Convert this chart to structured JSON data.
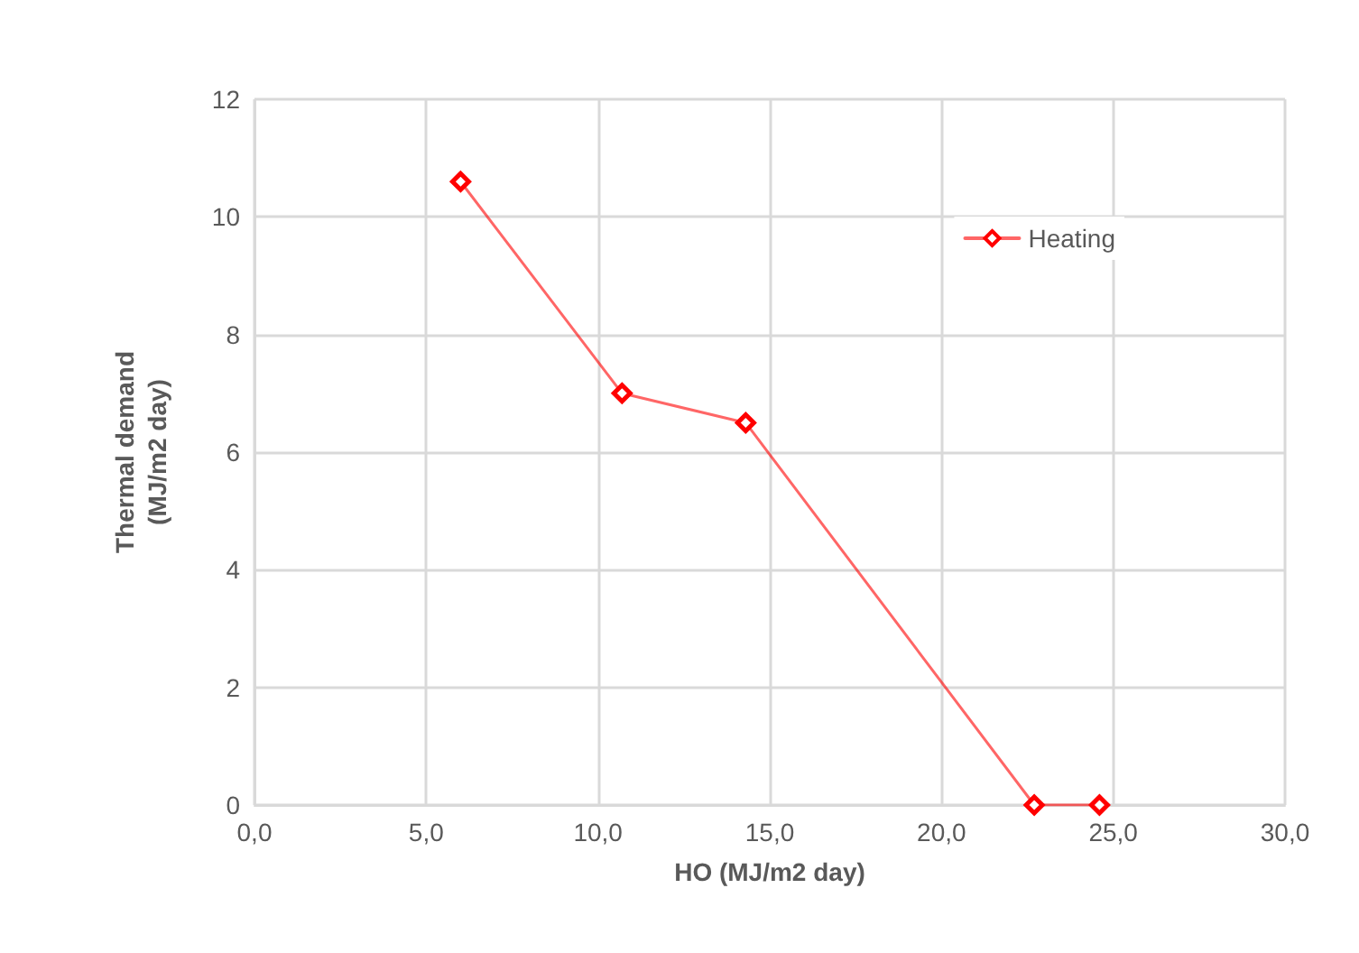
{
  "chart_data": {
    "type": "line",
    "xlabel": "HO (MJ/m2 day)",
    "ylabel": "Thermal demand\n(MJ/m2 day)",
    "x": [
      6.0,
      10.7,
      14.3,
      22.7,
      24.6
    ],
    "series": [
      {
        "name": "Heating",
        "color": "#ff0000",
        "values": [
          10.6,
          7.0,
          6.5,
          0,
          0
        ]
      }
    ],
    "xlim": [
      0,
      30
    ],
    "xticks": [
      {
        "value": 0,
        "label": "0,0"
      },
      {
        "value": 5,
        "label": "5,0"
      },
      {
        "value": 10,
        "label": "10,0"
      },
      {
        "value": 15,
        "label": "15,0"
      },
      {
        "value": 20,
        "label": "20,0"
      },
      {
        "value": 25,
        "label": "25,0"
      },
      {
        "value": 30,
        "label": "30,0"
      }
    ],
    "ylim": [
      0,
      12
    ],
    "yticks": [
      0,
      2,
      4,
      6,
      8,
      10,
      12
    ],
    "grid": true,
    "legend": "top right",
    "marker": "diamond",
    "line_style": "solid"
  }
}
